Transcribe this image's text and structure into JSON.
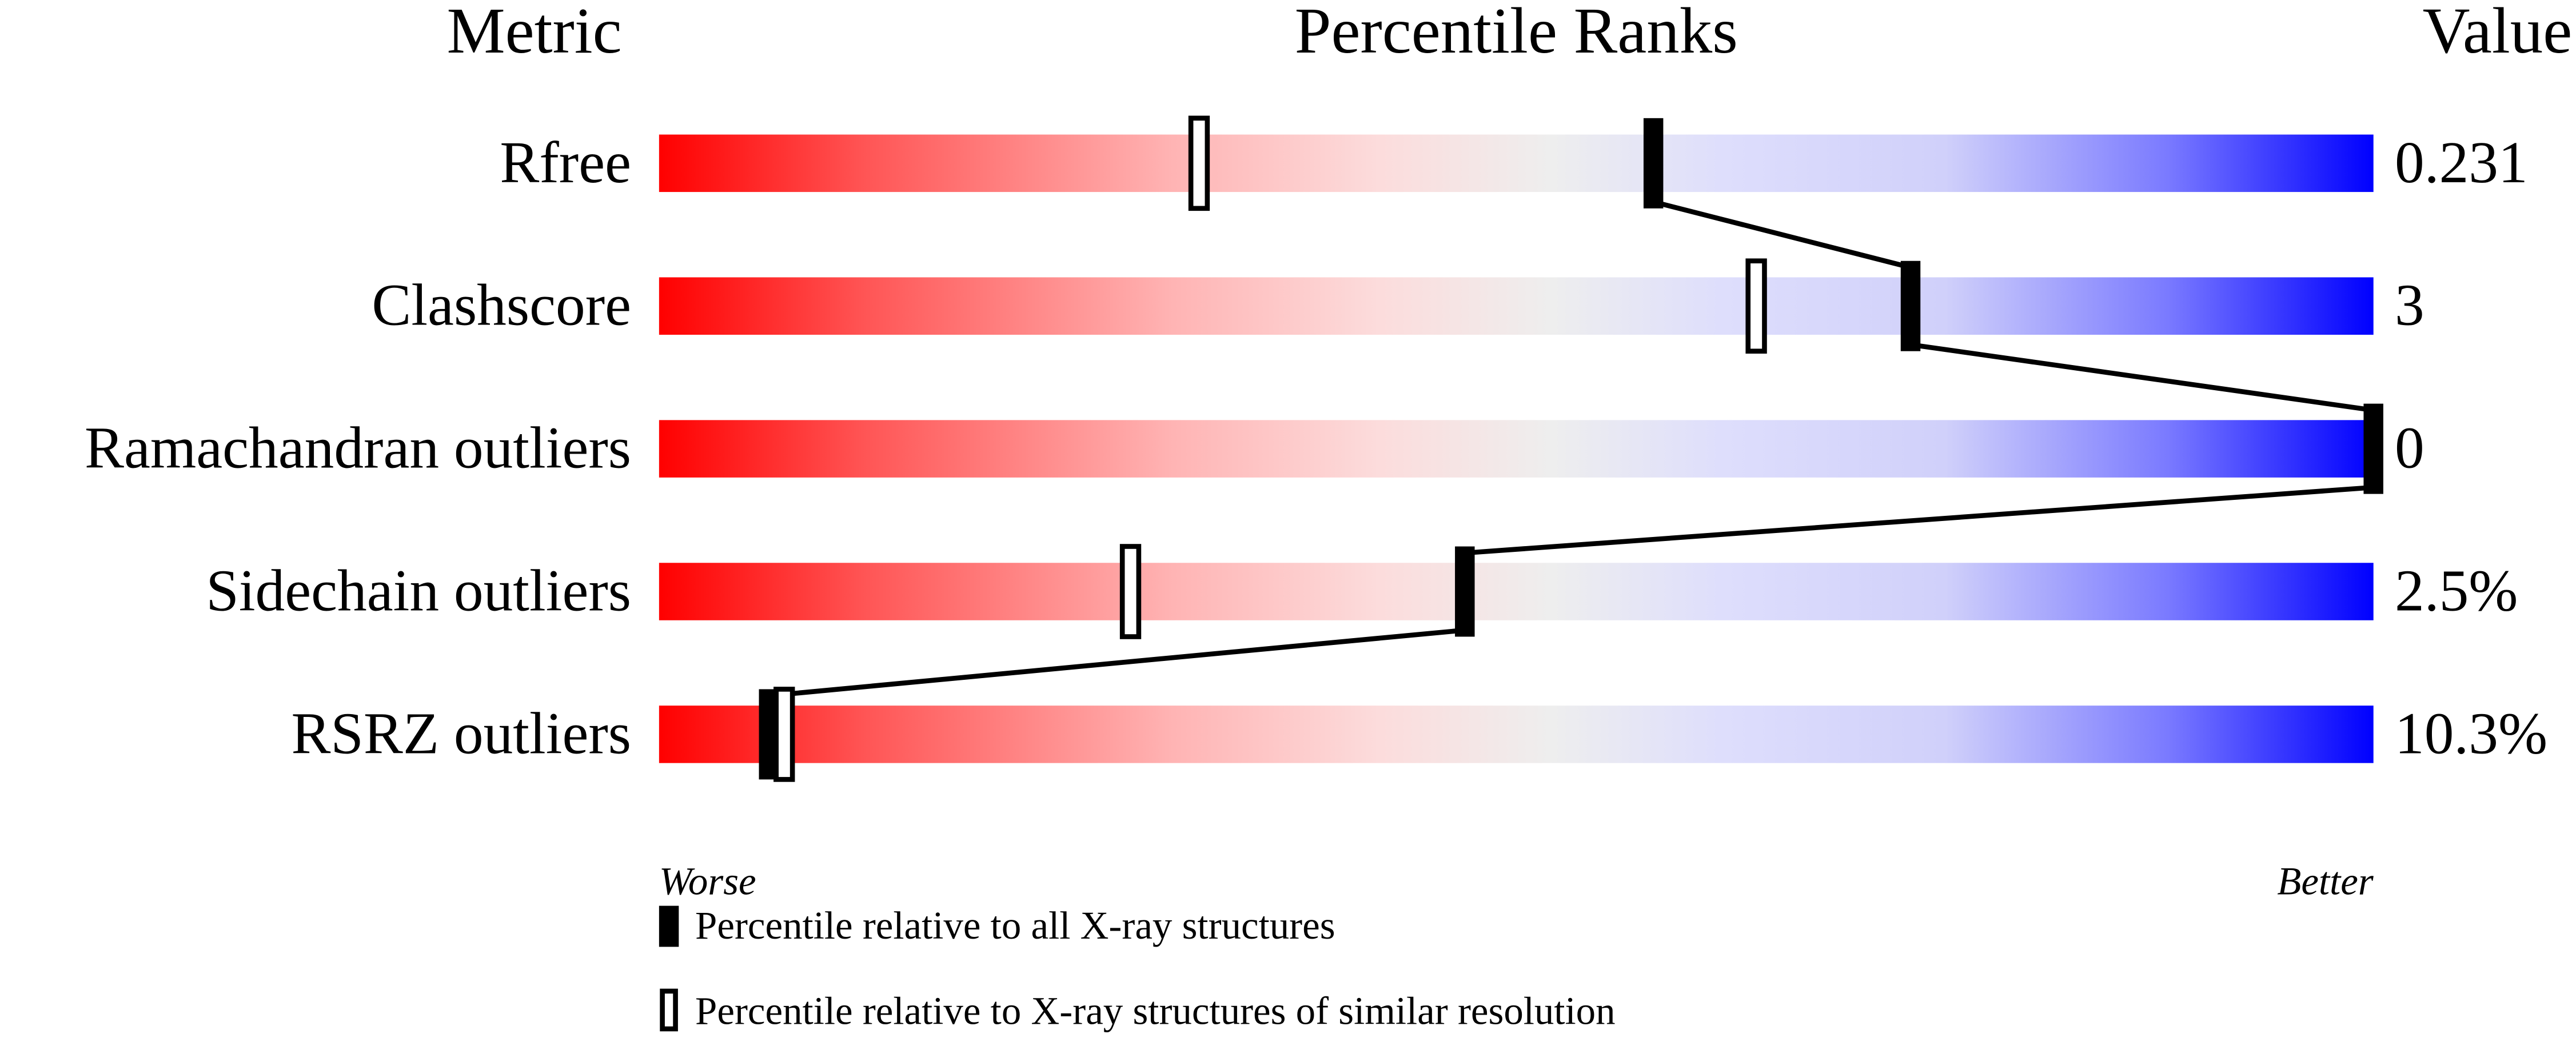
{
  "chart_data": {
    "type": "percentile-slider",
    "headers": {
      "metric": "Metric",
      "percentile": "Percentile Ranks",
      "value": "Value"
    },
    "xlim": [
      0,
      100
    ],
    "axis_labels": {
      "left": "Worse",
      "right": "Better"
    },
    "metrics": [
      {
        "name": "Rfree",
        "value": "0.231",
        "percentile_all": 58,
        "percentile_similar": 31.5
      },
      {
        "name": "Clashscore",
        "value": "3",
        "percentile_all": 73,
        "percentile_similar": 64
      },
      {
        "name": "Ramachandran outliers",
        "value": "0",
        "percentile_all": 100,
        "percentile_similar": null
      },
      {
        "name": "Sidechain outliers",
        "value": "2.5%",
        "percentile_all": 47,
        "percentile_similar": 27.5
      },
      {
        "name": "RSRZ outliers",
        "value": "10.3%",
        "percentile_all": 6.4,
        "percentile_similar": 7.3
      }
    ],
    "legend": [
      {
        "marker": "filled",
        "label": "Percentile relative to all X-ray structures"
      },
      {
        "marker": "open",
        "label": "Percentile relative to X-ray structures of similar resolution"
      }
    ],
    "colors": {
      "worse": "#ff0000",
      "middle": "#eeeeee",
      "better": "#0000ff",
      "marker": "#000000"
    }
  }
}
